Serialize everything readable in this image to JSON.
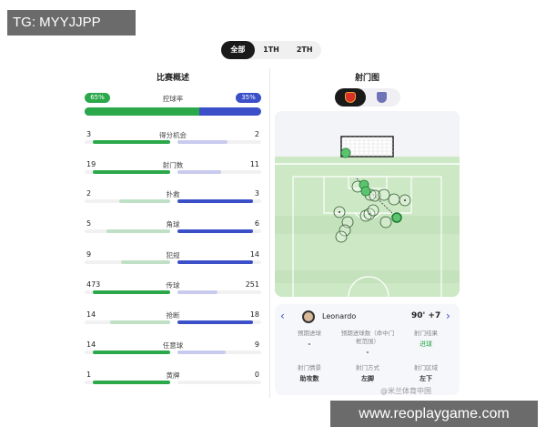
{
  "watermarks": {
    "top": "TG: MYYJJPP",
    "bottom": "www.reoplaygame.com",
    "weibo": "@米兰体育中国"
  },
  "tabs": [
    {
      "label": "全部",
      "active": true
    },
    {
      "label": "1TH",
      "active": false
    },
    {
      "label": "2TH",
      "active": false
    }
  ],
  "overview": {
    "title": "比赛概述",
    "possession": {
      "label": "控球率",
      "home": "65%",
      "away": "35%",
      "home_value": 65,
      "away_value": 35
    },
    "stats": [
      {
        "label": "得分机会",
        "home": "3",
        "away": "2"
      },
      {
        "label": "射门数",
        "home": "19",
        "away": "11"
      },
      {
        "label": "扑救",
        "home": "2",
        "away": "3"
      },
      {
        "label": "角球",
        "home": "5",
        "away": "6"
      },
      {
        "label": "犯规",
        "home": "9",
        "away": "14"
      },
      {
        "label": "传球",
        "home": "473",
        "away": "251"
      },
      {
        "label": "抢断",
        "home": "14",
        "away": "18"
      },
      {
        "label": "任意球",
        "home": "14",
        "away": "9"
      },
      {
        "label": "黄牌",
        "home": "1",
        "away": "0"
      }
    ]
  },
  "shotmap": {
    "title": "射门图",
    "team_toggle": [
      "home-team-crest",
      "away-team-crest"
    ],
    "player": "Leonardo",
    "time": "90' +7",
    "details": [
      {
        "label": "预期进球",
        "value": "-"
      },
      {
        "label": "预期进球数（命中门框范围）",
        "value": "-"
      },
      {
        "label": "射门结果",
        "value": "进球"
      },
      {
        "label": "射门情景",
        "value": "助攻数"
      },
      {
        "label": "射门方式",
        "value": "左脚"
      },
      {
        "label": "射门区域",
        "value": "左下"
      }
    ]
  },
  "colors": {
    "home": "#2aa84a",
    "away": "#3a4fc8",
    "home_light": "#bfe0c4",
    "away_light": "#c9cbee",
    "goal": "#2aa84a"
  }
}
